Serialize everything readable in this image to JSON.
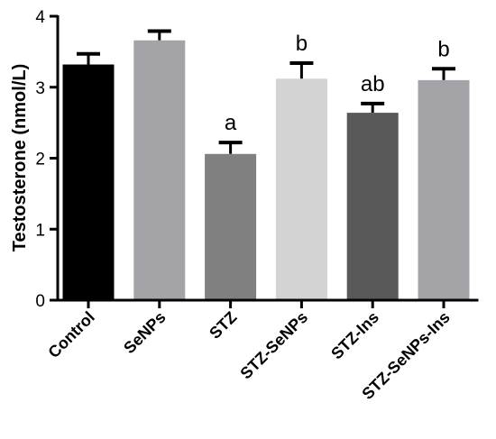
{
  "chart_data": {
    "type": "bar",
    "title": "",
    "xlabel": "",
    "ylabel": "Testosterone (nmol/L)",
    "ylim": [
      0,
      4
    ],
    "yticks": [
      0,
      1,
      2,
      3,
      4
    ],
    "grid": false,
    "categories": [
      "Control",
      "SeNPs",
      "STZ",
      "STZ-SeNPs",
      "STZ-Ins",
      "STZ-SeNPs-Ins"
    ],
    "values": [
      3.32,
      3.66,
      2.06,
      3.12,
      2.64,
      3.1
    ],
    "errors": [
      0.15,
      0.13,
      0.16,
      0.22,
      0.13,
      0.16
    ],
    "annotations": [
      "",
      "",
      "a",
      "b",
      "ab",
      "b"
    ],
    "colors": [
      "#000000",
      "#a4a4a8",
      "#808080",
      "#d3d3d3",
      "#595959",
      "#a4a4a8"
    ]
  }
}
